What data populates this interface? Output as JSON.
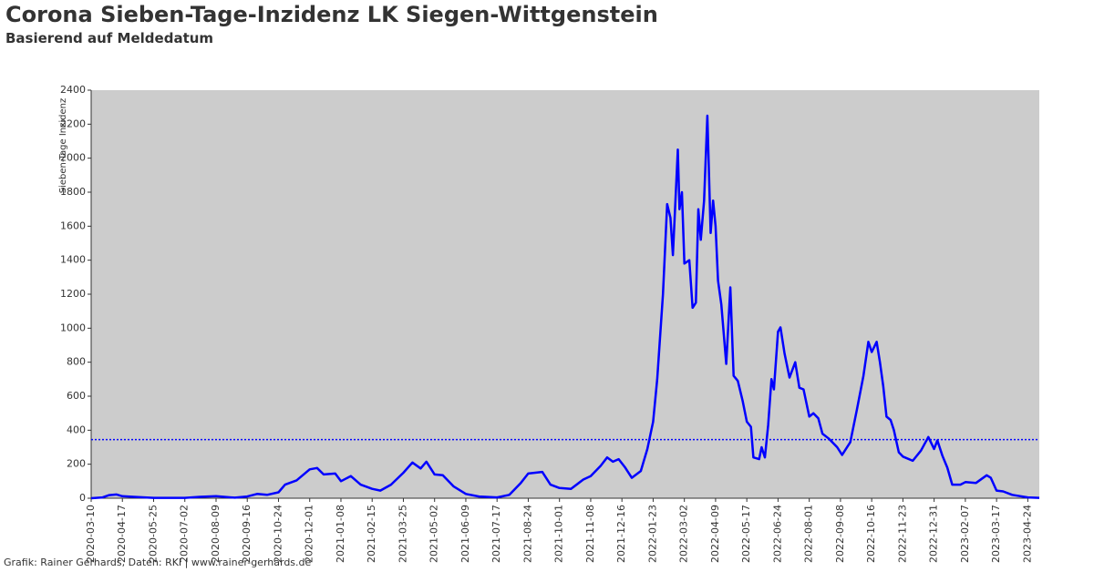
{
  "chart_data": {
    "type": "line",
    "title": "Corona Sieben-Tage-Inzidenz LK Siegen-Wittgenstein",
    "subtitle": "Basierend auf Meldedatum",
    "y_label": "Sieben-Tage Inzidenz",
    "footer": "Grafik: Rainer Gerhards, Daten: RKI | www.rainer-gerhards.de",
    "color": "#0000ff",
    "reference_line": 345,
    "reference_color": "#0000ff",
    "background": "#cccccc",
    "x": [
      "2020-03-10",
      "2020-03-24",
      "2020-04-01",
      "2020-04-10",
      "2020-04-17",
      "2020-05-01",
      "2020-05-25",
      "2020-07-02",
      "2020-07-20",
      "2020-08-09",
      "2020-09-01",
      "2020-09-16",
      "2020-09-28",
      "2020-10-10",
      "2020-10-24",
      "2020-11-01",
      "2020-11-15",
      "2020-12-01",
      "2020-12-10",
      "2020-12-18",
      "2021-01-01",
      "2021-01-08",
      "2021-01-20",
      "2021-02-01",
      "2021-02-15",
      "2021-02-25",
      "2021-03-10",
      "2021-03-25",
      "2021-04-05",
      "2021-04-15",
      "2021-04-22",
      "2021-05-02",
      "2021-05-12",
      "2021-05-25",
      "2021-06-09",
      "2021-06-25",
      "2021-07-17",
      "2021-08-01",
      "2021-08-15",
      "2021-08-24",
      "2021-09-10",
      "2021-09-20",
      "2021-10-01",
      "2021-10-15",
      "2021-10-30",
      "2021-11-08",
      "2021-11-20",
      "2021-11-28",
      "2021-12-05",
      "2021-12-12",
      "2021-12-20",
      "2021-12-28",
      "2022-01-08",
      "2022-01-16",
      "2022-01-23",
      "2022-01-28",
      "2022-02-04",
      "2022-02-09",
      "2022-02-13",
      "2022-02-16",
      "2022-02-22",
      "2022-02-24",
      "2022-02-27",
      "2022-03-02",
      "2022-03-08",
      "2022-03-12",
      "2022-03-16",
      "2022-03-19",
      "2022-03-22",
      "2022-03-26",
      "2022-03-30",
      "2022-04-03",
      "2022-04-06",
      "2022-04-09",
      "2022-04-12",
      "2022-04-16",
      "2022-04-22",
      "2022-04-27",
      "2022-05-01",
      "2022-05-06",
      "2022-05-12",
      "2022-05-17",
      "2022-05-22",
      "2022-05-25",
      "2022-06-01",
      "2022-06-04",
      "2022-06-08",
      "2022-06-12",
      "2022-06-16",
      "2022-06-19",
      "2022-06-24",
      "2022-06-27",
      "2022-07-02",
      "2022-07-08",
      "2022-07-15",
      "2022-07-20",
      "2022-07-25",
      "2022-08-01",
      "2022-08-06",
      "2022-08-12",
      "2022-08-17",
      "2022-08-25",
      "2022-09-04",
      "2022-09-10",
      "2022-09-20",
      "2022-09-28",
      "2022-10-06",
      "2022-10-12",
      "2022-10-16",
      "2022-10-22",
      "2022-10-26",
      "2022-10-30",
      "2022-11-03",
      "2022-11-08",
      "2022-11-12",
      "2022-11-18",
      "2022-11-23",
      "2022-12-05",
      "2022-12-15",
      "2022-12-24",
      "2022-12-31",
      "2023-01-04",
      "2023-01-10",
      "2023-01-16",
      "2023-01-22",
      "2023-02-01",
      "2023-02-07",
      "2023-02-20",
      "2023-03-05",
      "2023-03-10",
      "2023-03-17",
      "2023-03-25",
      "2023-04-05",
      "2023-04-24",
      "2023-05-08"
    ],
    "values": [
      0,
      5,
      18,
      22,
      12,
      8,
      2,
      2,
      8,
      12,
      3,
      10,
      25,
      20,
      35,
      80,
      105,
      170,
      178,
      140,
      145,
      100,
      130,
      80,
      55,
      45,
      80,
      150,
      210,
      175,
      215,
      140,
      135,
      70,
      25,
      10,
      5,
      20,
      90,
      145,
      155,
      80,
      60,
      55,
      110,
      130,
      190,
      240,
      215,
      230,
      180,
      120,
      160,
      290,
      450,
      700,
      1200,
      1730,
      1650,
      1430,
      2050,
      1700,
      1800,
      1380,
      1400,
      1120,
      1150,
      1700,
      1520,
      1750,
      2250,
      1560,
      1750,
      1600,
      1280,
      1140,
      790,
      1240,
      720,
      690,
      570,
      450,
      420,
      240,
      230,
      300,
      240,
      430,
      700,
      640,
      980,
      1005,
      850,
      710,
      800,
      650,
      640,
      480,
      500,
      470,
      380,
      350,
      300,
      255,
      330,
      520,
      720,
      920,
      860,
      920,
      800,
      660,
      480,
      460,
      400,
      270,
      245,
      220,
      280,
      360,
      290,
      340,
      250,
      180,
      80,
      80,
      95,
      90,
      135,
      120,
      45,
      40,
      20,
      5,
      2
    ],
    "xlim": [
      "2020-03-10",
      "2023-05-08"
    ],
    "xticks": [
      "2020-03-10",
      "2020-04-17",
      "2020-05-25",
      "2020-07-02",
      "2020-08-09",
      "2020-09-16",
      "2020-10-24",
      "2020-12-01",
      "2021-01-08",
      "2021-02-15",
      "2021-03-25",
      "2021-05-02",
      "2021-06-09",
      "2021-07-17",
      "2021-08-24",
      "2021-10-01",
      "2021-11-08",
      "2021-12-16",
      "2022-01-23",
      "2022-03-02",
      "2022-04-09",
      "2022-05-17",
      "2022-06-24",
      "2022-08-01",
      "2022-09-08",
      "2022-10-16",
      "2022-11-23",
      "2022-12-31",
      "2023-02-07",
      "2023-03-17",
      "2023-04-24"
    ],
    "ylim": [
      0,
      2400
    ],
    "yticks": [
      0,
      200,
      400,
      600,
      800,
      1000,
      1200,
      1400,
      1600,
      1800,
      2000,
      2200,
      2400
    ]
  }
}
